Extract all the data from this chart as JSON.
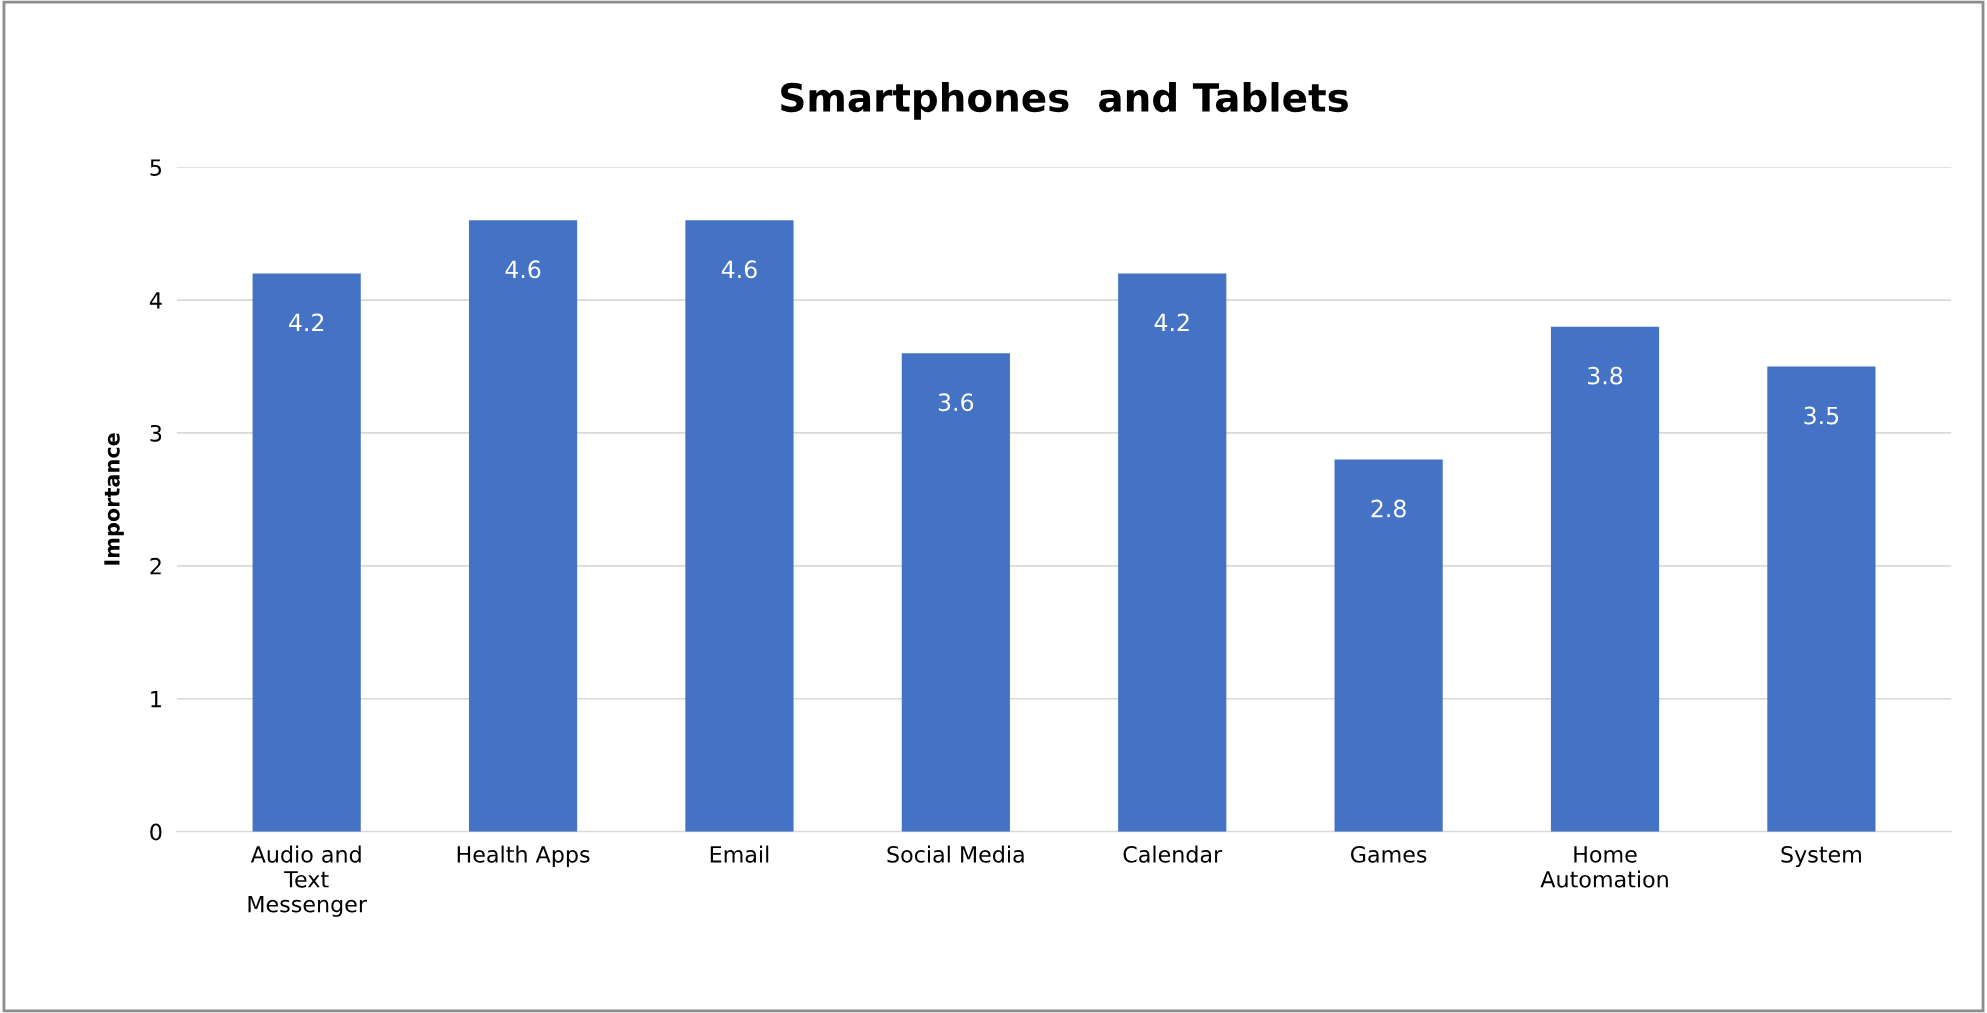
{
  "chart_data": {
    "type": "bar",
    "title": "Smartphones  and Tablets",
    "ylabel": "Importance",
    "categories": [
      "Audio and\nText\nMessenger",
      "Health Apps",
      "Email",
      "Social Media",
      "Calendar",
      "Games",
      "Home\nAutomation",
      "System"
    ],
    "values": [
      4.2,
      4.6,
      4.6,
      3.6,
      4.2,
      2.8,
      3.8,
      3.5
    ],
    "color": "#4472c4",
    "ylim": [
      0,
      5
    ],
    "yticks": [
      0,
      1,
      2,
      3,
      4,
      5
    ],
    "grid": "y",
    "data_labels": true
  }
}
